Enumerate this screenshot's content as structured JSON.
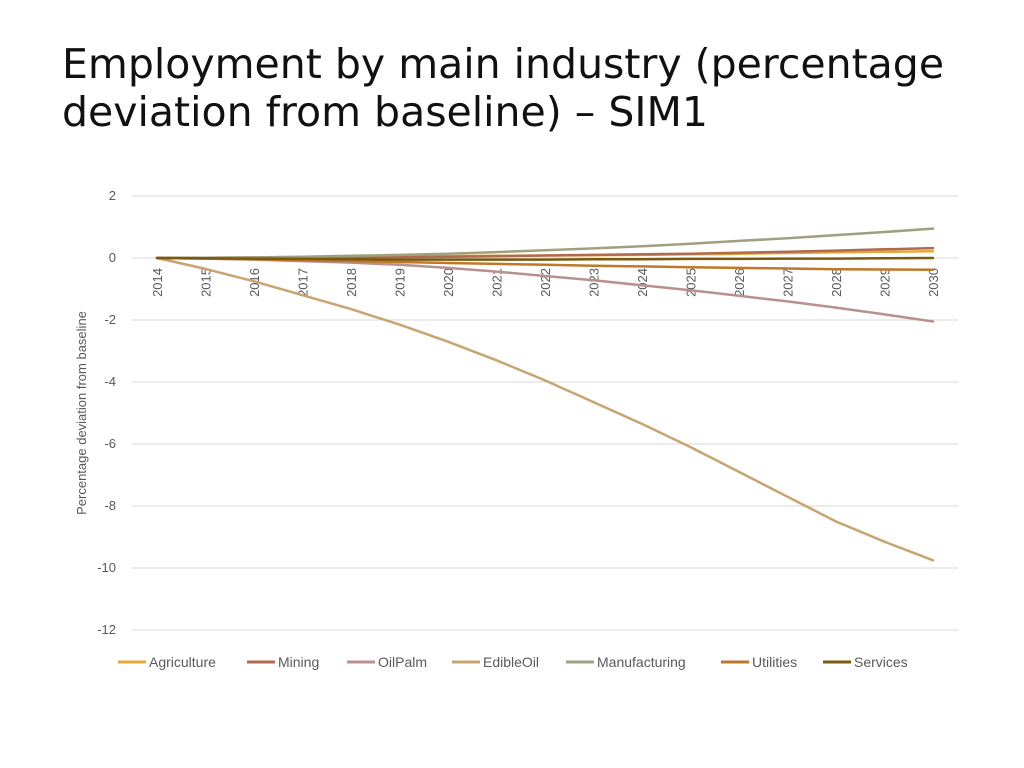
{
  "slide": {
    "title_line1": "Employment by main industry (percentage",
    "title_line2": "deviation from baseline) – SIM1"
  },
  "chart_data": {
    "type": "line",
    "title": "",
    "xlabel": "",
    "ylabel": "Percentage deviation from baseline",
    "ylim": [
      -12,
      2
    ],
    "yticks": [
      2,
      0,
      -2,
      -4,
      -6,
      -8,
      -10,
      -12
    ],
    "grid": true,
    "legend_position": "bottom",
    "x": [
      "2014",
      "2015",
      "2016",
      "2017",
      "2018",
      "2019",
      "2020",
      "2021",
      "2022",
      "2023",
      "2024",
      "2025",
      "2026",
      "2027",
      "2028",
      "2029",
      "2030"
    ],
    "series": [
      {
        "name": "Agriculture",
        "color": "#E8A838",
        "values": [
          0,
          0.01,
          0.02,
          0.03,
          0.04,
          0.05,
          0.06,
          0.07,
          0.08,
          0.09,
          0.1,
          0.12,
          0.14,
          0.16,
          0.18,
          0.2,
          0.22
        ]
      },
      {
        "name": "Mining",
        "color": "#B06A50",
        "values": [
          0,
          0.0,
          0.0,
          0.01,
          0.02,
          0.03,
          0.04,
          0.06,
          0.08,
          0.1,
          0.12,
          0.14,
          0.17,
          0.2,
          0.24,
          0.28,
          0.32
        ]
      },
      {
        "name": "OilPalm",
        "color": "#B89090",
        "values": [
          0,
          -0.02,
          -0.05,
          -0.1,
          -0.15,
          -0.22,
          -0.32,
          -0.44,
          -0.58,
          -0.72,
          -0.88,
          -1.04,
          -1.22,
          -1.4,
          -1.6,
          -1.82,
          -2.05
        ]
      },
      {
        "name": "EdibleOil",
        "color": "#C8A470",
        "values": [
          0,
          -0.35,
          -0.75,
          -1.2,
          -1.65,
          -2.15,
          -2.7,
          -3.3,
          -3.95,
          -4.65,
          -5.35,
          -6.1,
          -6.9,
          -7.7,
          -8.5,
          -9.15,
          -9.75
        ]
      },
      {
        "name": "Manufacturing",
        "color": "#A0A080",
        "values": [
          0,
          0.01,
          0.02,
          0.04,
          0.07,
          0.1,
          0.14,
          0.19,
          0.25,
          0.31,
          0.38,
          0.46,
          0.55,
          0.64,
          0.74,
          0.84,
          0.95
        ]
      },
      {
        "name": "Utilities",
        "color": "#C07828",
        "values": [
          0,
          -0.02,
          -0.04,
          -0.07,
          -0.1,
          -0.13,
          -0.16,
          -0.19,
          -0.22,
          -0.25,
          -0.27,
          -0.3,
          -0.32,
          -0.34,
          -0.36,
          -0.37,
          -0.38
        ]
      },
      {
        "name": "Services",
        "color": "#7A5A10",
        "values": [
          0,
          -0.01,
          -0.02,
          -0.03,
          -0.04,
          -0.05,
          -0.05,
          -0.05,
          -0.05,
          -0.04,
          -0.04,
          -0.03,
          -0.03,
          -0.02,
          -0.02,
          -0.01,
          0.0
        ]
      }
    ]
  }
}
